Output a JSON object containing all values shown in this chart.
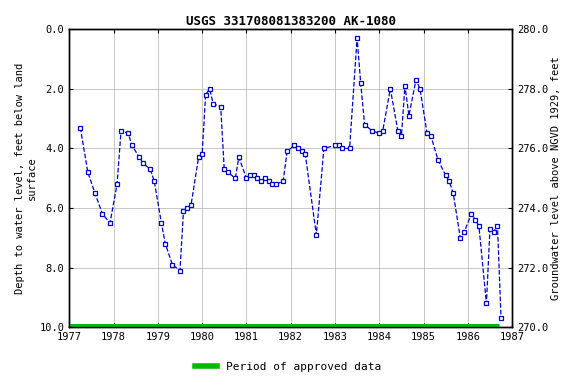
{
  "title": "USGS 331708081383200 AK-1080",
  "ylabel_left": "Depth to water level, feet below land\nsurface",
  "ylabel_right": "Groundwater level above NGVD 1929, feet",
  "ylim_left": [
    10.0,
    0.0
  ],
  "ylim_right": [
    270.0,
    280.0
  ],
  "xlim": [
    1977.0,
    1987.0
  ],
  "yticks_left": [
    0.0,
    2.0,
    4.0,
    6.0,
    8.0,
    10.0
  ],
  "yticks_right": [
    270.0,
    272.0,
    274.0,
    276.0,
    278.0,
    280.0
  ],
  "xticks": [
    1977,
    1978,
    1979,
    1980,
    1981,
    1982,
    1983,
    1984,
    1985,
    1986,
    1987
  ],
  "background_color": "#ffffff",
  "plot_bg_color": "#ffffff",
  "grid_color": "#b0b0b0",
  "line_color": "#0000cc",
  "marker_color": "#0000cc",
  "green_bar_color": "#00bb00",
  "title_fontsize": 9,
  "axis_fontsize": 7.5,
  "tick_fontsize": 7.5,
  "legend_fontsize": 8,
  "data_x": [
    1977.25,
    1977.42,
    1977.58,
    1977.75,
    1977.92,
    1978.08,
    1978.17,
    1978.33,
    1978.42,
    1978.58,
    1978.67,
    1978.83,
    1978.92,
    1979.08,
    1979.17,
    1979.33,
    1979.5,
    1979.58,
    1979.67,
    1979.75,
    1979.92,
    1980.0,
    1980.08,
    1980.17,
    1980.25,
    1980.42,
    1980.5,
    1980.58,
    1980.75,
    1980.83,
    1981.0,
    1981.08,
    1981.17,
    1981.25,
    1981.33,
    1981.42,
    1981.5,
    1981.58,
    1981.67,
    1981.83,
    1981.92,
    1982.08,
    1982.17,
    1982.25,
    1982.33,
    1982.58,
    1982.75,
    1983.0,
    1983.08,
    1983.17,
    1983.33,
    1983.5,
    1983.58,
    1983.67,
    1983.83,
    1984.0,
    1984.08,
    1984.25,
    1984.42,
    1984.5,
    1984.58,
    1984.67,
    1984.83,
    1984.92,
    1985.08,
    1985.17,
    1985.33,
    1985.5,
    1985.58,
    1985.67,
    1985.83,
    1985.92,
    1986.08,
    1986.17,
    1986.25,
    1986.42,
    1986.5,
    1986.58,
    1986.67,
    1986.75
  ],
  "data_y": [
    3.3,
    4.8,
    5.5,
    6.2,
    6.5,
    5.2,
    3.4,
    3.5,
    3.9,
    4.3,
    4.5,
    4.7,
    5.1,
    6.5,
    7.2,
    7.9,
    8.1,
    6.1,
    6.0,
    5.9,
    4.3,
    4.2,
    2.2,
    2.0,
    2.5,
    2.6,
    4.7,
    4.8,
    5.0,
    4.3,
    5.0,
    4.9,
    4.9,
    5.0,
    5.1,
    5.0,
    5.1,
    5.2,
    5.2,
    5.1,
    4.1,
    3.9,
    4.0,
    4.1,
    4.2,
    6.9,
    4.0,
    3.9,
    3.9,
    4.0,
    4.0,
    0.3,
    1.8,
    3.2,
    3.4,
    3.5,
    3.4,
    2.0,
    3.4,
    3.6,
    1.9,
    2.9,
    1.7,
    2.0,
    3.5,
    3.6,
    4.4,
    4.9,
    5.1,
    5.5,
    7.0,
    6.8,
    6.2,
    6.4,
    6.6,
    9.2,
    6.7,
    6.8,
    6.6,
    9.7
  ],
  "green_bar_start": 1977.0,
  "green_bar_end": 1986.7,
  "green_bar_y": 10.0
}
